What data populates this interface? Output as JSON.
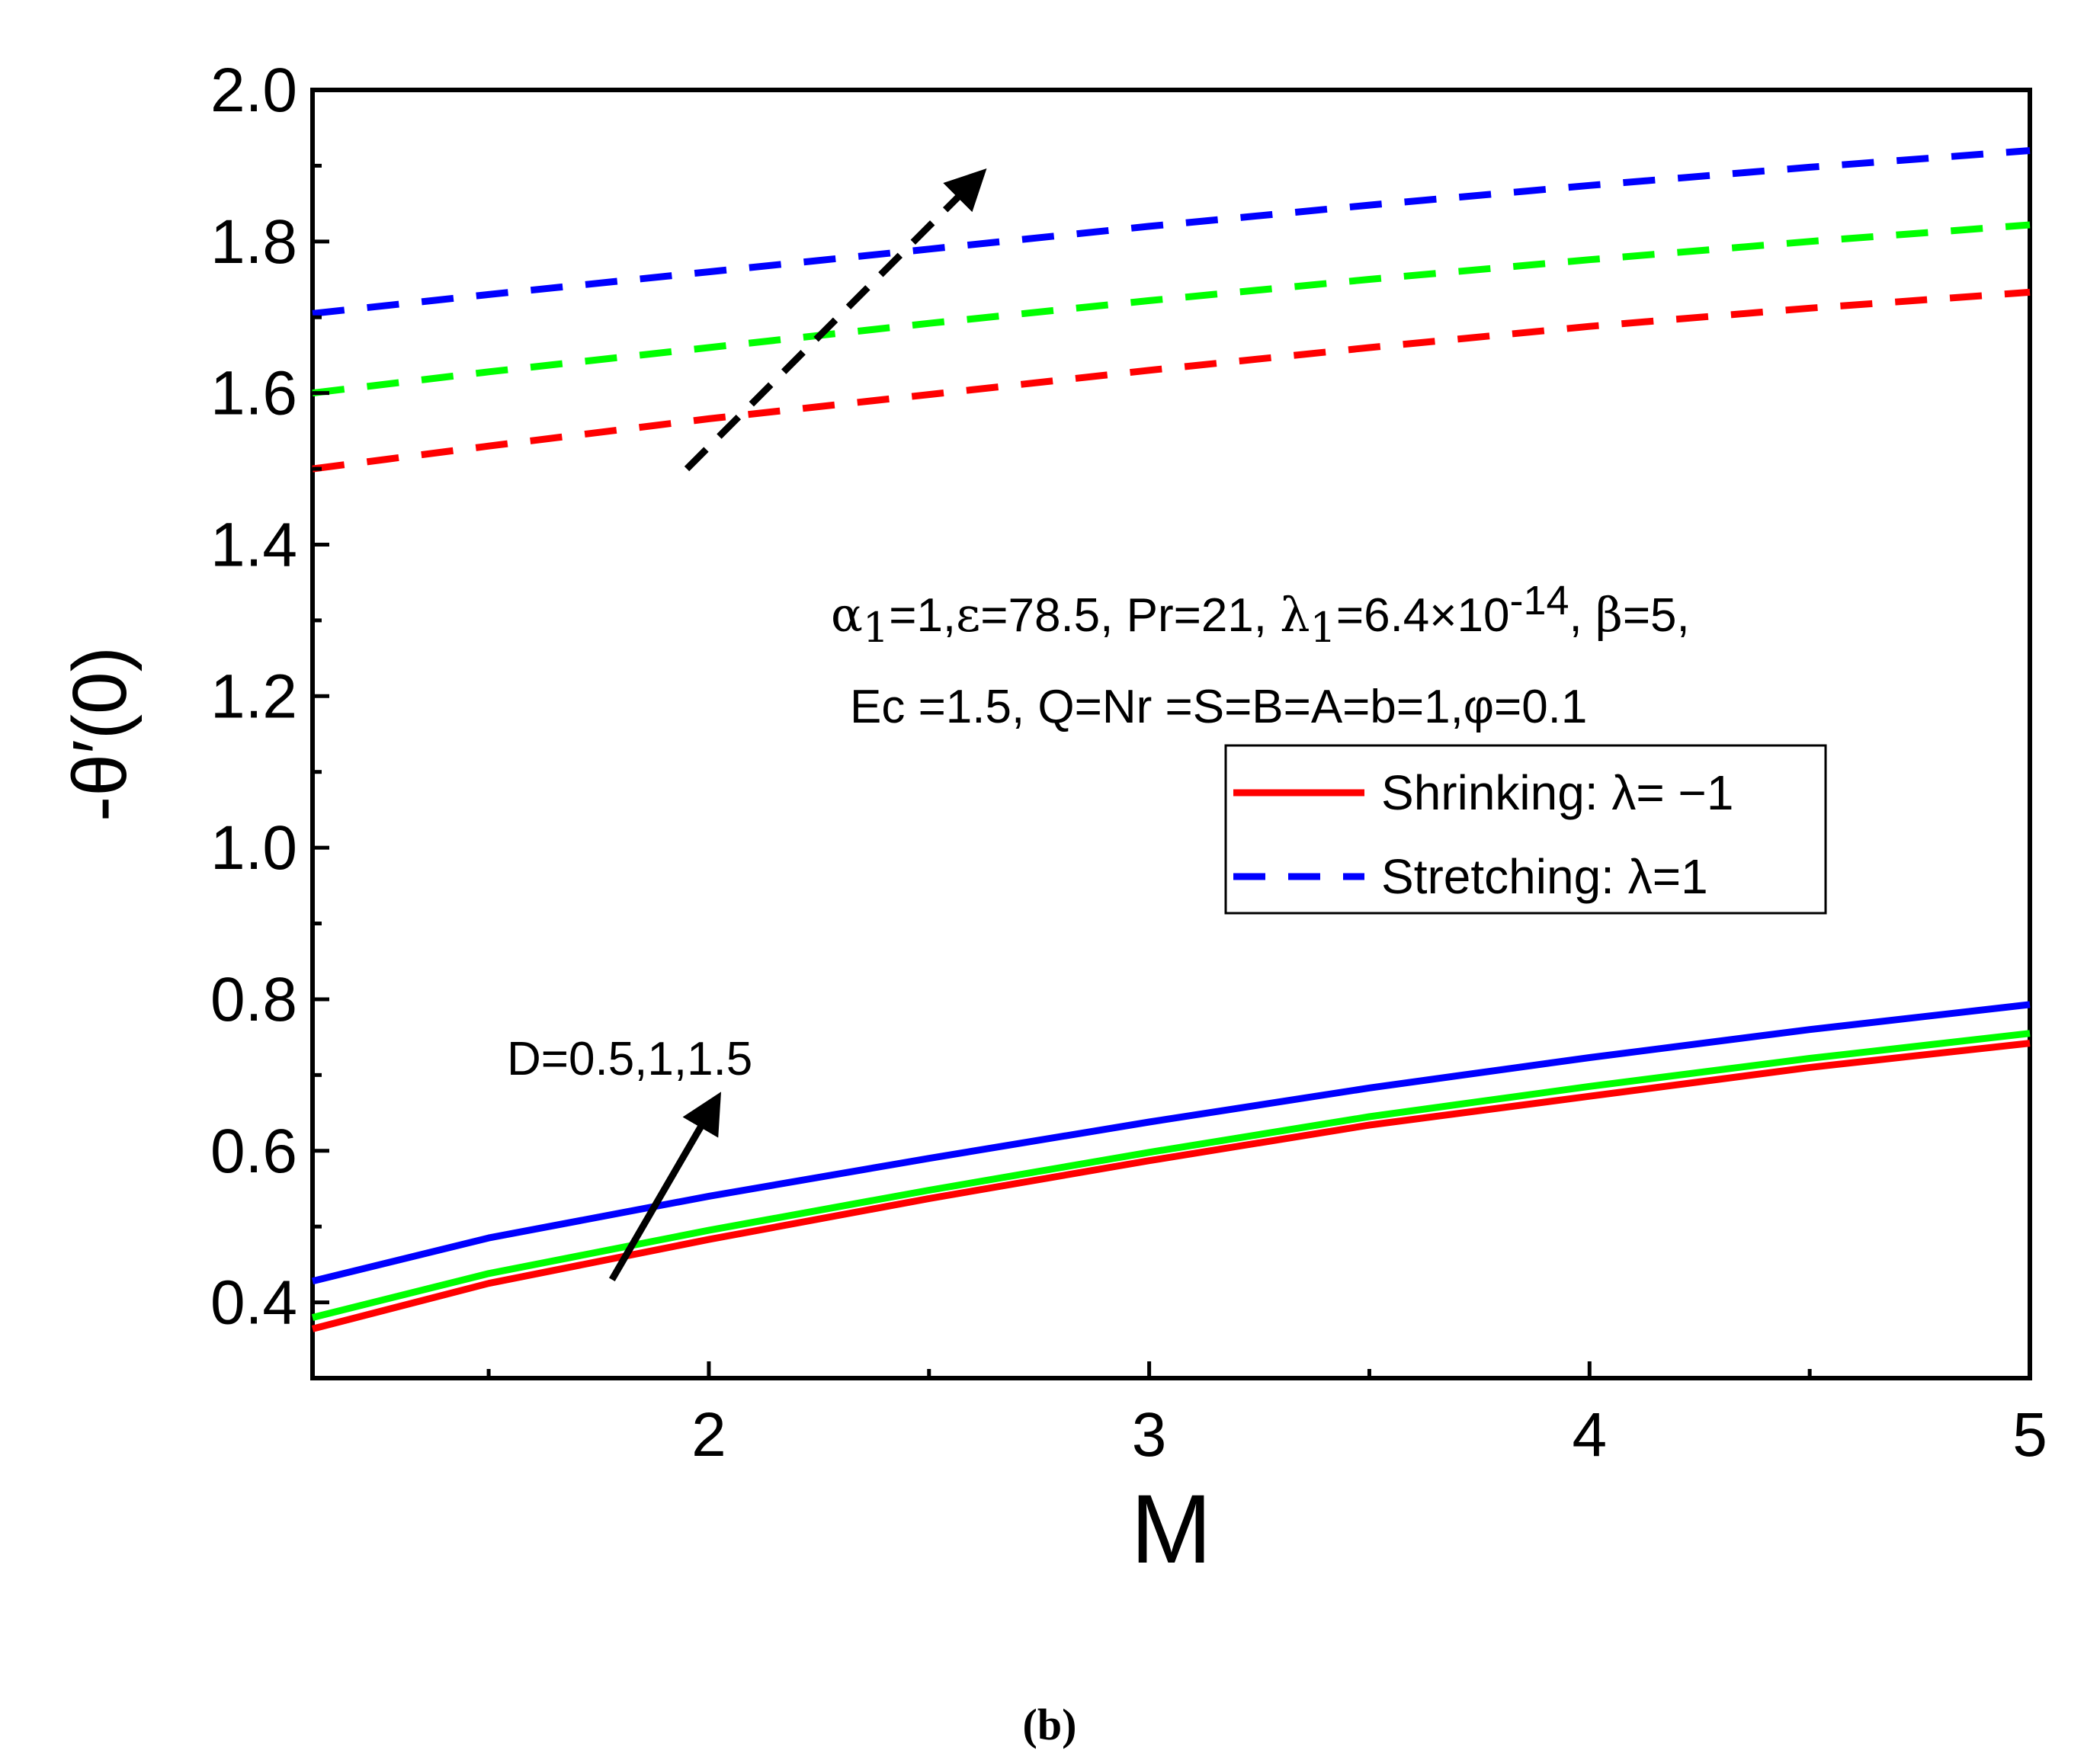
{
  "chart_data": {
    "type": "line",
    "title": "",
    "xlabel": "M",
    "ylabel": "-θ′(0)",
    "xlim": [
      1.1,
      5.0
    ],
    "ylim": [
      0.3,
      2.0
    ],
    "xticks": [
      2,
      3,
      4,
      5
    ],
    "xtick_labels": [
      "2",
      "3",
      "4",
      "5"
    ],
    "yticks": [
      0.4,
      0.6,
      0.8,
      1.0,
      1.2,
      1.4,
      1.6,
      1.8,
      2.0
    ],
    "ytick_labels": [
      "0.4",
      "0.6",
      "0.8",
      "1.0",
      "1.2",
      "1.4",
      "1.6",
      "1.8",
      "2.0"
    ],
    "x": [
      1.1,
      1.5,
      2.0,
      2.5,
      3.0,
      3.5,
      4.0,
      4.5,
      5.0
    ],
    "series": [
      {
        "name": "Shrinking D=0.5",
        "color": "#ff0000",
        "dash": "solid",
        "values": [
          0.365,
          0.425,
          0.483,
          0.537,
          0.587,
          0.634,
          0.672,
          0.71,
          0.742
        ]
      },
      {
        "name": "Shrinking D=1",
        "color": "#00ff00",
        "dash": "solid",
        "values": [
          0.38,
          0.438,
          0.495,
          0.548,
          0.598,
          0.645,
          0.685,
          0.722,
          0.755
        ]
      },
      {
        "name": "Shrinking D=1.5",
        "color": "#0000ff",
        "dash": "solid",
        "values": [
          0.428,
          0.485,
          0.54,
          0.59,
          0.638,
          0.683,
          0.723,
          0.76,
          0.793
        ]
      },
      {
        "name": "Stretching D=0.5",
        "color": "#ff0000",
        "dash": "dashed",
        "values": [
          1.5,
          1.53,
          1.566,
          1.598,
          1.63,
          1.66,
          1.688,
          1.712,
          1.733
        ]
      },
      {
        "name": "Stretching D=1",
        "color": "#00ff00",
        "dash": "dashed",
        "values": [
          1.6,
          1.628,
          1.66,
          1.692,
          1.722,
          1.75,
          1.776,
          1.8,
          1.822
        ]
      },
      {
        "name": "Stretching D=1.5",
        "color": "#0000ff",
        "dash": "dashed",
        "values": [
          1.705,
          1.73,
          1.76,
          1.79,
          1.82,
          1.848,
          1.874,
          1.898,
          1.92
        ]
      }
    ],
    "arrows": [
      {
        "name": "stretching-trend-arrow",
        "dash": "dashed",
        "from": [
          1.95,
          1.5
        ],
        "to": [
          2.62,
          1.89
        ]
      },
      {
        "name": "shrinking-trend-arrow",
        "dash": "solid",
        "from": [
          1.78,
          0.43
        ],
        "to": [
          2.02,
          0.67
        ]
      }
    ],
    "annotations": {
      "params_line1": {
        "parts": [
          {
            "t": "α",
            "s": "serif"
          },
          {
            "t": "1",
            "s": "sub"
          },
          {
            "t": "=1,",
            "s": ""
          },
          {
            "t": "ε",
            "s": "serif"
          },
          {
            "t": "=78.5, Pr=21, ",
            "s": ""
          },
          {
            "t": "λ",
            "s": "serif"
          },
          {
            "t": "1",
            "s": "sub"
          },
          {
            "t": "=6.4×10",
            "s": ""
          },
          {
            "t": "-14",
            "s": "sup"
          },
          {
            "t": ", ",
            "s": ""
          },
          {
            "t": "β",
            "s": "serif"
          },
          {
            "t": "=5,",
            "s": ""
          }
        ]
      },
      "params_line2": "Ec =1.5, Q=Nr =S=B=A=b=1,φ=0.1",
      "d_label": "D=0.5,1,1.5"
    },
    "legend": {
      "position": "center-right",
      "entries": [
        {
          "label": "Shrinking: λ= −1",
          "color": "#ff0000",
          "dash": "solid"
        },
        {
          "label": "Stretching: λ=1",
          "color": "#0000ff",
          "dash": "dashed"
        }
      ]
    },
    "caption": "(b)"
  }
}
